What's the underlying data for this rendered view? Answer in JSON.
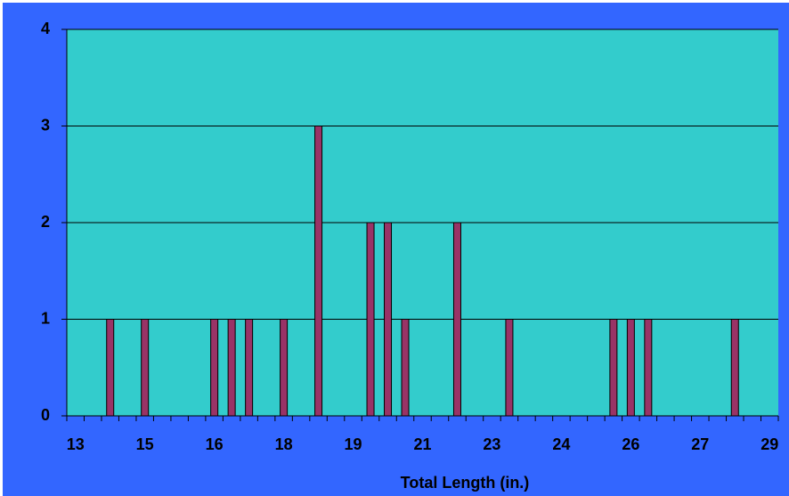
{
  "chart_data": {
    "type": "bar",
    "x_label": "Total Length (in.)",
    "categories": [
      "13",
      null,
      null,
      null,
      "15",
      null,
      null,
      null,
      "16",
      null,
      null,
      null,
      "18",
      null,
      null,
      null,
      "19",
      null,
      null,
      null,
      "21",
      null,
      null,
      null,
      "23",
      null,
      null,
      null,
      "24",
      null,
      null,
      null,
      "26",
      null,
      null,
      null,
      "27",
      null,
      null,
      null,
      "29"
    ],
    "values": [
      0,
      0,
      1,
      0,
      1,
      0,
      0,
      0,
      1,
      1,
      1,
      0,
      1,
      0,
      3,
      0,
      0,
      2,
      2,
      1,
      0,
      0,
      2,
      0,
      0,
      1,
      0,
      0,
      0,
      0,
      0,
      1,
      1,
      1,
      0,
      0,
      0,
      0,
      1,
      0,
      0
    ],
    "color": "#993366",
    "ylim": [
      0,
      4
    ],
    "yticks": [
      0,
      1,
      2,
      3,
      4
    ],
    "grid": true
  }
}
